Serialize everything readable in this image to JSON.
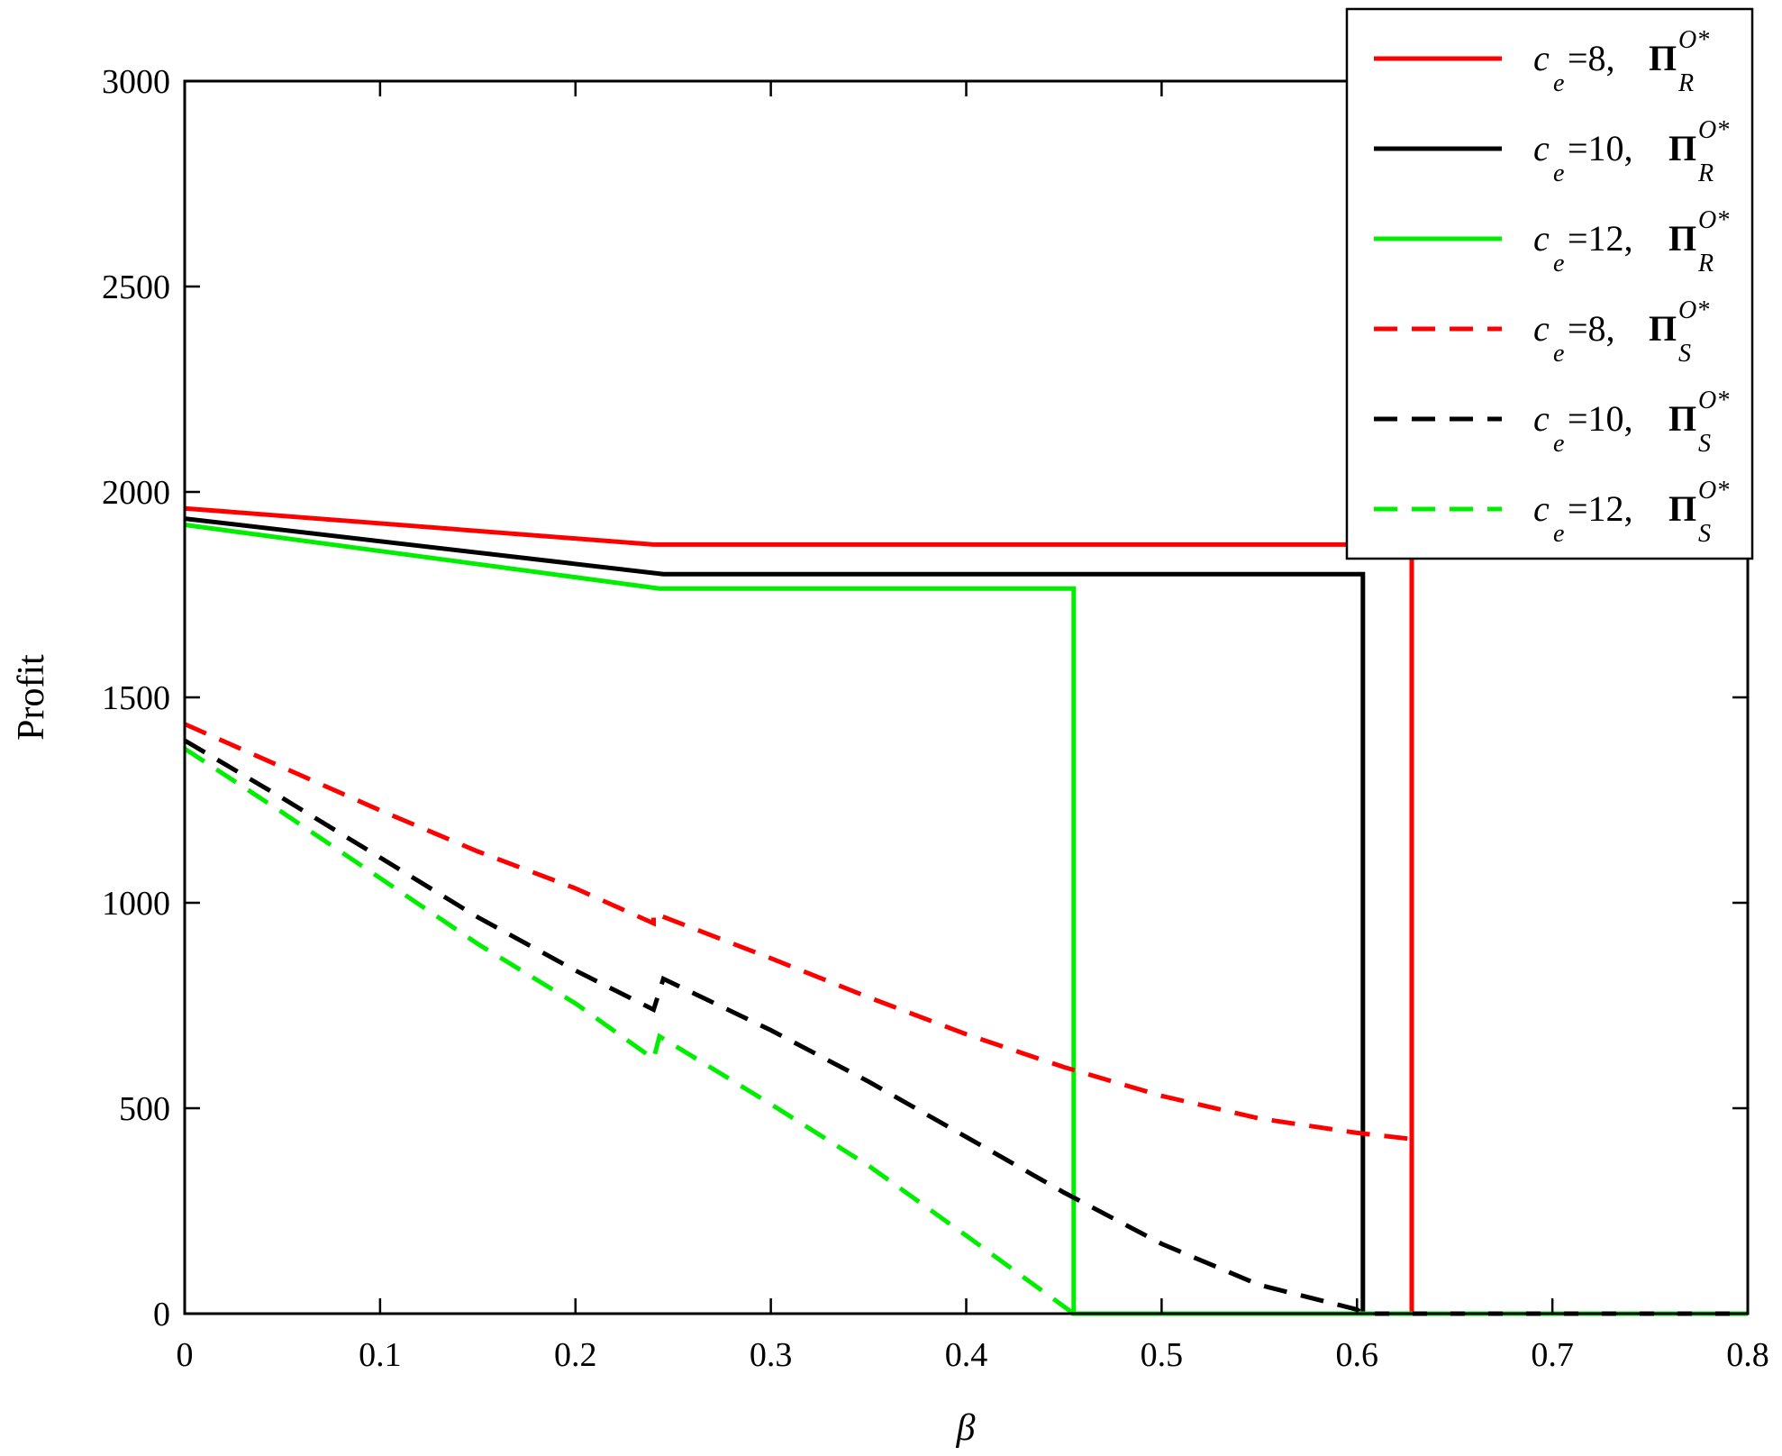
{
  "chart_data": {
    "type": "line",
    "xlabel": "β",
    "ylabel": "Profit",
    "xlim": [
      0,
      0.8
    ],
    "ylim": [
      0,
      3000
    ],
    "x_ticks": [
      "0",
      "0.1",
      "0.2",
      "0.3",
      "0.4",
      "0.5",
      "0.6",
      "0.7",
      "0.8"
    ],
    "y_ticks": [
      "0",
      "500",
      "1000",
      "1500",
      "2000",
      "2500",
      "3000"
    ],
    "grid": false,
    "legend_position": "top-right",
    "series": [
      {
        "legend": {
          "c_sub": "e",
          "value": "=8",
          "pi_sup": "O*",
          "pi_sub": "R"
        },
        "color": "#ff0000",
        "style": "solid",
        "points": [
          [
            0,
            1960
          ],
          [
            0.24,
            1872
          ],
          [
            0.628,
            1872
          ],
          [
            0.628,
            0
          ],
          [
            0.8,
            0
          ]
        ]
      },
      {
        "legend": {
          "c_sub": "e",
          "value": "=10",
          "pi_sup": "O*",
          "pi_sub": "R"
        },
        "color": "#000000",
        "style": "solid",
        "points": [
          [
            0,
            1935
          ],
          [
            0.245,
            1800
          ],
          [
            0.603,
            1800
          ],
          [
            0.603,
            0
          ],
          [
            0.8,
            0
          ]
        ]
      },
      {
        "legend": {
          "c_sub": "e",
          "value": "=12",
          "pi_sup": "O*",
          "pi_sub": "R"
        },
        "color": "#00ee00",
        "style": "solid",
        "points": [
          [
            0,
            1920
          ],
          [
            0.243,
            1765
          ],
          [
            0.455,
            1765
          ],
          [
            0.455,
            0
          ],
          [
            0.8,
            0
          ]
        ]
      },
      {
        "legend": {
          "c_sub": "e",
          "value": "=8",
          "pi_sup": "O*",
          "pi_sub": "S"
        },
        "color": "#ff0000",
        "style": "dashed",
        "points": [
          [
            0,
            1435
          ],
          [
            0.05,
            1330
          ],
          [
            0.1,
            1225
          ],
          [
            0.15,
            1125
          ],
          [
            0.2,
            1035
          ],
          [
            0.24,
            950
          ],
          [
            0.24,
            975
          ],
          [
            0.3,
            865
          ],
          [
            0.35,
            770
          ],
          [
            0.4,
            680
          ],
          [
            0.45,
            600
          ],
          [
            0.5,
            530
          ],
          [
            0.55,
            475
          ],
          [
            0.6,
            440
          ],
          [
            0.628,
            425
          ],
          [
            0.628,
            0
          ],
          [
            0.8,
            0
          ]
        ]
      },
      {
        "legend": {
          "c_sub": "e",
          "value": "=10",
          "pi_sup": "O*",
          "pi_sub": "S"
        },
        "color": "#000000",
        "style": "dashed",
        "points": [
          [
            0,
            1395
          ],
          [
            0.05,
            1255
          ],
          [
            0.1,
            1110
          ],
          [
            0.15,
            965
          ],
          [
            0.2,
            835
          ],
          [
            0.24,
            740
          ],
          [
            0.245,
            815
          ],
          [
            0.3,
            690
          ],
          [
            0.35,
            565
          ],
          [
            0.4,
            430
          ],
          [
            0.45,
            295
          ],
          [
            0.5,
            170
          ],
          [
            0.55,
            70
          ],
          [
            0.6,
            10
          ],
          [
            0.603,
            0
          ],
          [
            0.8,
            0
          ]
        ]
      },
      {
        "legend": {
          "c_sub": "e",
          "value": "=12",
          "pi_sup": "O*",
          "pi_sub": "S"
        },
        "color": "#00ee00",
        "style": "dashed",
        "points": [
          [
            0,
            1375
          ],
          [
            0.05,
            1220
          ],
          [
            0.1,
            1060
          ],
          [
            0.15,
            900
          ],
          [
            0.2,
            755
          ],
          [
            0.24,
            620
          ],
          [
            0.243,
            675
          ],
          [
            0.3,
            510
          ],
          [
            0.35,
            360
          ],
          [
            0.4,
            190
          ],
          [
            0.455,
            0
          ],
          [
            0.8,
            0
          ]
        ]
      }
    ],
    "legend_symbols": {
      "c": "c",
      "pi": "Π",
      "sep": ", "
    }
  }
}
